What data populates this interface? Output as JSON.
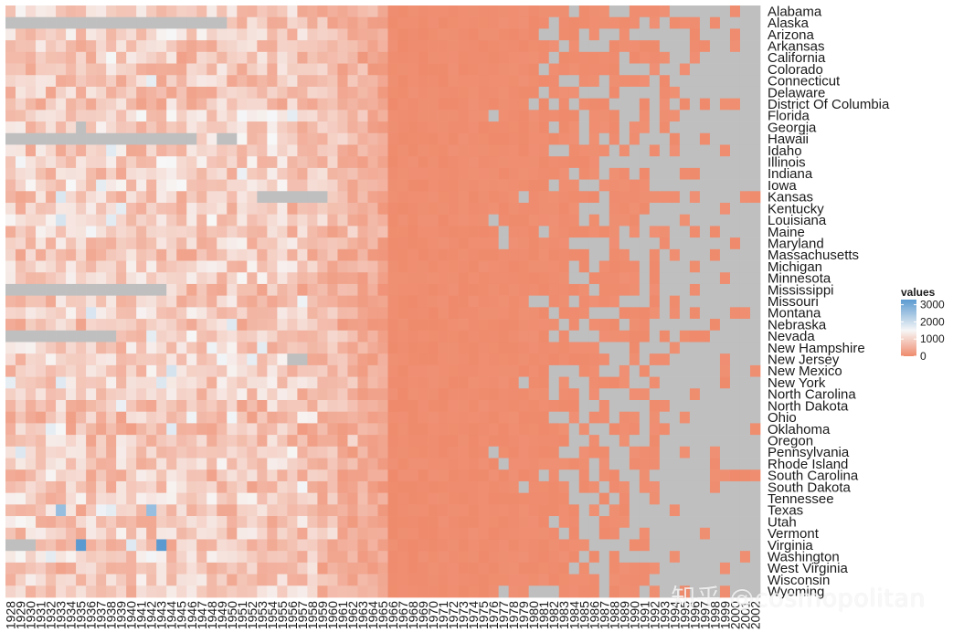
{
  "chart_data": {
    "type": "heatmap",
    "title": "",
    "xlabel": "",
    "ylabel": "",
    "x": [
      "1928",
      "1929",
      "1930",
      "1931",
      "1932",
      "1933",
      "1934",
      "1935",
      "1936",
      "1937",
      "1938",
      "1939",
      "1940",
      "1941",
      "1942",
      "1943",
      "1944",
      "1945",
      "1946",
      "1947",
      "1948",
      "1949",
      "1950",
      "1951",
      "1952",
      "1953",
      "1954",
      "1955",
      "1956",
      "1957",
      "1958",
      "1959",
      "1960",
      "1961",
      "1962",
      "1963",
      "1964",
      "1965",
      "1966",
      "1967",
      "1968",
      "1969",
      "1970",
      "1971",
      "1972",
      "1973",
      "1974",
      "1975",
      "1976",
      "1977",
      "1978",
      "1979",
      "1980",
      "1981",
      "1982",
      "1983",
      "1984",
      "1985",
      "1986",
      "1987",
      "1988",
      "1989",
      "1990",
      "1991",
      "1992",
      "1993",
      "1994",
      "1995",
      "1996",
      "1997",
      "1998",
      "1999",
      "2000",
      "2001",
      "2002"
    ],
    "y": [
      "Alabama",
      "Alaska",
      "Arizona",
      "Arkansas",
      "California",
      "Colorado",
      "Connecticut",
      "Delaware",
      "District Of Columbia",
      "Florida",
      "Georgia",
      "Hawaii",
      "Idaho",
      "Illinois",
      "Indiana",
      "Iowa",
      "Kansas",
      "Kentucky",
      "Louisiana",
      "Maine",
      "Maryland",
      "Massachusetts",
      "Michigan",
      "Minnesota",
      "Mississippi",
      "Missouri",
      "Montana",
      "Nebraska",
      "Nevada",
      "New Hampshire",
      "New Jersey",
      "New Mexico",
      "New York",
      "North Carolina",
      "North Dakota",
      "Ohio",
      "Oklahoma",
      "Oregon",
      "Pennsylvania",
      "Rhode Island",
      "South Carolina",
      "South Dakota",
      "Tennessee",
      "Texas",
      "Utah",
      "Vermont",
      "Virginia",
      "Washington",
      "West Virginia",
      "Wisconsin",
      "Wyoming"
    ],
    "legend": {
      "title": "values",
      "ticks": [
        0,
        1000,
        2000,
        3000
      ],
      "tick_labels": [
        "0",
        "1000",
        "2000",
        "3000"
      ],
      "placement": "right"
    },
    "scale": {
      "low": 0,
      "mid": 1500,
      "high": 3300
    },
    "colors": {
      "low": "#EF8A6C",
      "mid": "#F7F7F7",
      "high": "#5A9AD0",
      "na": "#BFBFBF"
    },
    "missing_blocks": [
      {
        "state": "Alaska",
        "from": "1928",
        "to": "1949"
      },
      {
        "state": "Hawaii",
        "from": "1928",
        "to": "1946"
      },
      {
        "state": "Hawaii",
        "from": "1949",
        "to": "1950"
      },
      {
        "state": "Mississippi",
        "from": "1928",
        "to": "1943"
      },
      {
        "state": "Nevada",
        "from": "1928",
        "to": "1938"
      },
      {
        "state": "Virginia",
        "from": "1928",
        "to": "1930"
      },
      {
        "state": "Kansas",
        "from": "1953",
        "to": "1959"
      },
      {
        "state": "Georgia",
        "from": "1935",
        "to": "1935"
      },
      {
        "state": "New Jersey",
        "from": "1956",
        "to": "1957"
      }
    ],
    "note": "Cell values are approximate: roughly 300-1700 before 1966, near 0 from 1966 onward, with increasing missing (NA) cells after 1978; highest values (~3300) appear in Virginia 1935 and 1943."
  },
  "watermark": "知乎 @cosmopolitan"
}
